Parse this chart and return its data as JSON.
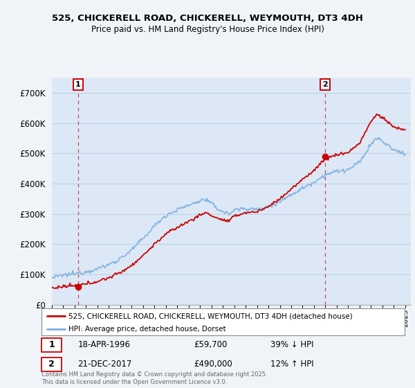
{
  "title_line1": "525, CHICKERELL ROAD, CHICKERELL, WEYMOUTH, DT3 4DH",
  "title_line2": "Price paid vs. HM Land Registry's House Price Index (HPI)",
  "ylim": [
    0,
    750000
  ],
  "yticks": [
    0,
    100000,
    200000,
    300000,
    400000,
    500000,
    600000,
    700000
  ],
  "hpi_color": "#7aade0",
  "price_color": "#cc0000",
  "marker1_year": 1996.29,
  "marker1_price": 59700,
  "marker1_label": "1",
  "marker1_date": "18-APR-1996",
  "marker1_amount": "£59,700",
  "marker1_hpi": "39% ↓ HPI",
  "marker2_year": 2017.97,
  "marker2_price": 490000,
  "marker2_label": "2",
  "marker2_date": "21-DEC-2017",
  "marker2_amount": "£490,000",
  "marker2_hpi": "12% ↑ HPI",
  "legend_label_price": "525, CHICKERELL ROAD, CHICKERELL, WEYMOUTH, DT3 4DH (detached house)",
  "legend_label_hpi": "HPI: Average price, detached house, Dorset",
  "footnote": "Contains HM Land Registry data © Crown copyright and database right 2025.\nThis data is licensed under the Open Government Licence v3.0.",
  "background_color": "#f0f4f8",
  "plot_background": "#dce8f5",
  "grid_color": "#b8cfe8"
}
